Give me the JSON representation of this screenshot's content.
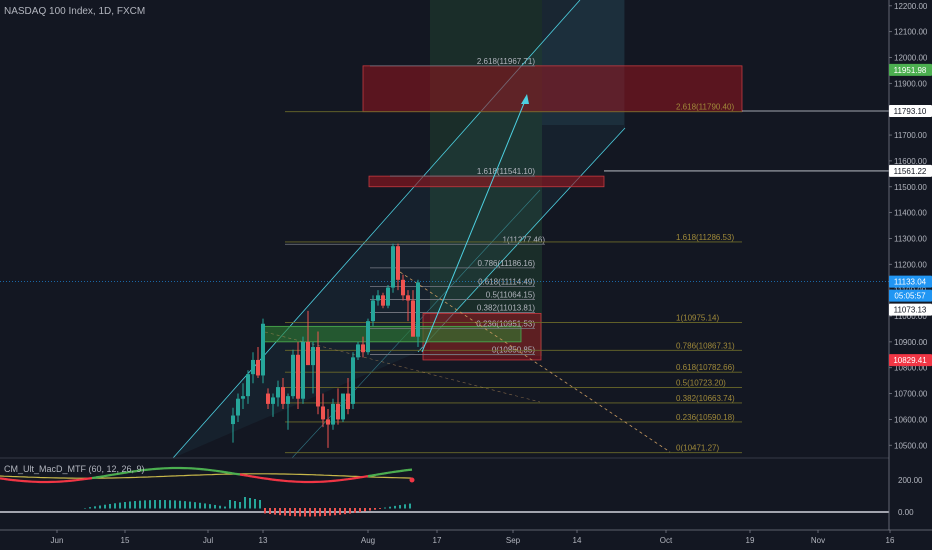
{
  "title": "NASDAQ 100 Index, 1D, FXCM",
  "macd_title": "CM_Ult_MacD_MTF (60, 12, 26, 9)",
  "colors": {
    "background": "#131722",
    "up": "#26a69a",
    "down": "#ef5350",
    "macd_line_up": "#4caf50",
    "macd_line_down": "#f23645",
    "signal": "#c8b84a",
    "channel": "#4dd0e1",
    "fib_text": "#b2b5be",
    "fib_ext_text": "#a08a3a"
  },
  "chart_data": {
    "type": "candlestick",
    "title": "NASDAQ 100 Index, 1D, FXCM",
    "ylim": [
      10400,
      12250
    ],
    "y_ticks": [
      10500,
      10600,
      10700,
      10800,
      10900,
      11000,
      11100,
      11200,
      11300,
      11400,
      11500,
      11600,
      11700,
      11800,
      11900,
      12000,
      12100,
      12200
    ],
    "x_ticks": [
      {
        "label": "Jun",
        "x": 57
      },
      {
        "label": "15",
        "x": 125
      },
      {
        "label": "Jul",
        "x": 208
      },
      {
        "label": "13",
        "x": 263
      },
      {
        "label": "Aug",
        "x": 368
      },
      {
        "label": "17",
        "x": 437
      },
      {
        "label": "Sep",
        "x": 513
      },
      {
        "label": "14",
        "x": 577
      },
      {
        "label": "Oct",
        "x": 666
      },
      {
        "label": "19",
        "x": 750
      },
      {
        "label": "Nov",
        "x": 818
      },
      {
        "label": "16",
        "x": 890
      }
    ],
    "price_badges": [
      {
        "label": "11951.98",
        "value": 11951.98,
        "bg": "#4caf50",
        "fg": "#ffffff"
      },
      {
        "label": "11793.10",
        "value": 11793.1,
        "bg": "#ffffff",
        "fg": "#131722"
      },
      {
        "label": "11561.22",
        "value": 11561.22,
        "bg": "#ffffff",
        "fg": "#131722"
      },
      {
        "label": "11133.04",
        "value": 11133.04,
        "bg": "#2196f3",
        "fg": "#ffffff"
      },
      {
        "label": "05:05:57",
        "value": 11095,
        "bg": "#2196f3",
        "fg": "#ffffff"
      },
      {
        "label": "11073.13",
        "value": 11057,
        "bg": "#ffffff",
        "fg": "#131722"
      },
      {
        "label": "10829.41",
        "value": 10829.41,
        "bg": "#f23645",
        "fg": "#ffffff"
      }
    ],
    "candles": [
      {
        "x": 233,
        "o": 10582,
        "h": 10645,
        "l": 10510,
        "c": 10615
      },
      {
        "x": 238,
        "o": 10615,
        "h": 10700,
        "l": 10590,
        "c": 10680
      },
      {
        "x": 243,
        "o": 10680,
        "h": 10740,
        "l": 10640,
        "c": 10690
      },
      {
        "x": 248,
        "o": 10690,
        "h": 10790,
        "l": 10660,
        "c": 10775
      },
      {
        "x": 253,
        "o": 10775,
        "h": 10860,
        "l": 10740,
        "c": 10830
      },
      {
        "x": 258,
        "o": 10830,
        "h": 10880,
        "l": 10760,
        "c": 10770
      },
      {
        "x": 263,
        "o": 10770,
        "h": 10990,
        "l": 10740,
        "c": 10970
      },
      {
        "x": 268,
        "o": 10700,
        "h": 10720,
        "l": 10640,
        "c": 10660
      },
      {
        "x": 273,
        "o": 10660,
        "h": 10700,
        "l": 10610,
        "c": 10685
      },
      {
        "x": 278,
        "o": 10685,
        "h": 10750,
        "l": 10650,
        "c": 10725
      },
      {
        "x": 283,
        "o": 10725,
        "h": 10760,
        "l": 10640,
        "c": 10660
      },
      {
        "x": 288,
        "o": 10660,
        "h": 10700,
        "l": 10560,
        "c": 10690
      },
      {
        "x": 293,
        "o": 10690,
        "h": 10870,
        "l": 10680,
        "c": 10850
      },
      {
        "x": 298,
        "o": 10850,
        "h": 10900,
        "l": 10640,
        "c": 10680
      },
      {
        "x": 303,
        "o": 10680,
        "h": 10920,
        "l": 10660,
        "c": 10900
      },
      {
        "x": 308,
        "o": 10900,
        "h": 11020,
        "l": 10820,
        "c": 10810
      },
      {
        "x": 313,
        "o": 10810,
        "h": 10900,
        "l": 10700,
        "c": 10880
      },
      {
        "x": 318,
        "o": 10880,
        "h": 10940,
        "l": 10620,
        "c": 10650
      },
      {
        "x": 323,
        "o": 10650,
        "h": 10700,
        "l": 10570,
        "c": 10600
      },
      {
        "x": 328,
        "o": 10600,
        "h": 10640,
        "l": 10490,
        "c": 10580
      },
      {
        "x": 333,
        "o": 10580,
        "h": 10680,
        "l": 10560,
        "c": 10660
      },
      {
        "x": 338,
        "o": 10660,
        "h": 10720,
        "l": 10580,
        "c": 10600
      },
      {
        "x": 343,
        "o": 10600,
        "h": 10700,
        "l": 10590,
        "c": 10700
      },
      {
        "x": 348,
        "o": 10700,
        "h": 10760,
        "l": 10620,
        "c": 10640
      },
      {
        "x": 353,
        "o": 10660,
        "h": 10860,
        "l": 10640,
        "c": 10840
      },
      {
        "x": 358,
        "o": 10840,
        "h": 10900,
        "l": 10830,
        "c": 10890
      },
      {
        "x": 363,
        "o": 10890,
        "h": 10920,
        "l": 10840,
        "c": 10860
      },
      {
        "x": 368,
        "o": 10860,
        "h": 10990,
        "l": 10850,
        "c": 10980
      },
      {
        "x": 373,
        "o": 10980,
        "h": 11080,
        "l": 10960,
        "c": 11060
      },
      {
        "x": 378,
        "o": 11060,
        "h": 11100,
        "l": 11040,
        "c": 11080
      },
      {
        "x": 383,
        "o": 11080,
        "h": 11090,
        "l": 11030,
        "c": 11040
      },
      {
        "x": 388,
        "o": 11040,
        "h": 11120,
        "l": 11030,
        "c": 11110
      },
      {
        "x": 393,
        "o": 11110,
        "h": 11280,
        "l": 11090,
        "c": 11270
      },
      {
        "x": 398,
        "o": 11270,
        "h": 11280,
        "l": 11100,
        "c": 11140
      },
      {
        "x": 403,
        "o": 11140,
        "h": 11160,
        "l": 11060,
        "c": 11080
      },
      {
        "x": 408,
        "o": 11080,
        "h": 11100,
        "l": 10980,
        "c": 11060
      },
      {
        "x": 413,
        "o": 11060,
        "h": 11100,
        "l": 10920,
        "c": 10920
      },
      {
        "x": 418,
        "o": 10920,
        "h": 11140,
        "l": 10880,
        "c": 11130
      }
    ],
    "fib_retracement": [
      {
        "label": "1(11277.46)",
        "value": 11277.46
      },
      {
        "label": "0.786(11186.16)",
        "value": 11186.16
      },
      {
        "label": "0.618(11114.49)",
        "value": 11114.49
      },
      {
        "label": "0.5(11064.15)",
        "value": 11064.15
      },
      {
        "label": "0.382(11013.81)",
        "value": 11013.81
      },
      {
        "label": "0.236(10951.53)",
        "value": 10951.53
      },
      {
        "label": "0(10850.85)",
        "value": 10850.85
      },
      {
        "label": "1.618(11541.10)",
        "value": 11541.1
      },
      {
        "label": "2.618(11967.71)",
        "value": 11967.71
      }
    ],
    "fib_extension": [
      {
        "label": "2.618(11790.40)",
        "value": 11790.4
      },
      {
        "label": "1.618(11286.53)",
        "value": 11286.53
      },
      {
        "label": "1(10975.14)",
        "value": 10975.14
      },
      {
        "label": "0.786(10867.31)",
        "value": 10867.31
      },
      {
        "label": "0.618(10782.66)",
        "value": 10782.66
      },
      {
        "label": "0.5(10723.20)",
        "value": 10723.2
      },
      {
        "label": "0.382(10663.74)",
        "value": 10663.74
      },
      {
        "label": "0.236(10590.18)",
        "value": 10590.18
      },
      {
        "label": "0(10471.27)",
        "value": 10471.27
      }
    ],
    "zones": [
      {
        "name": "target-zone-top",
        "y1": 11967.71,
        "y2": 11790.4,
        "fill": "rgba(150,20,30,0.55)",
        "stroke": "#c43a40"
      },
      {
        "name": "target-zone-mid",
        "y1": 11541.1,
        "y2": 11500,
        "fill": "rgba(150,20,30,0.6)",
        "stroke": "#c43a40"
      },
      {
        "name": "stop-zone",
        "y1": 11010,
        "y2": 10830,
        "fill": "rgba(150,20,30,0.55)",
        "stroke": "#c43a40"
      },
      {
        "name": "support-zone",
        "y1": 10960,
        "y2": 10900,
        "fill": "rgba(46,125,50,0.6)",
        "stroke": "#4caf50"
      }
    ],
    "macd_panel": {
      "y_ticks": [
        {
          "label": "200.00",
          "value": 200
        },
        {
          "label": "0.00",
          "value": 0
        }
      ]
    }
  }
}
